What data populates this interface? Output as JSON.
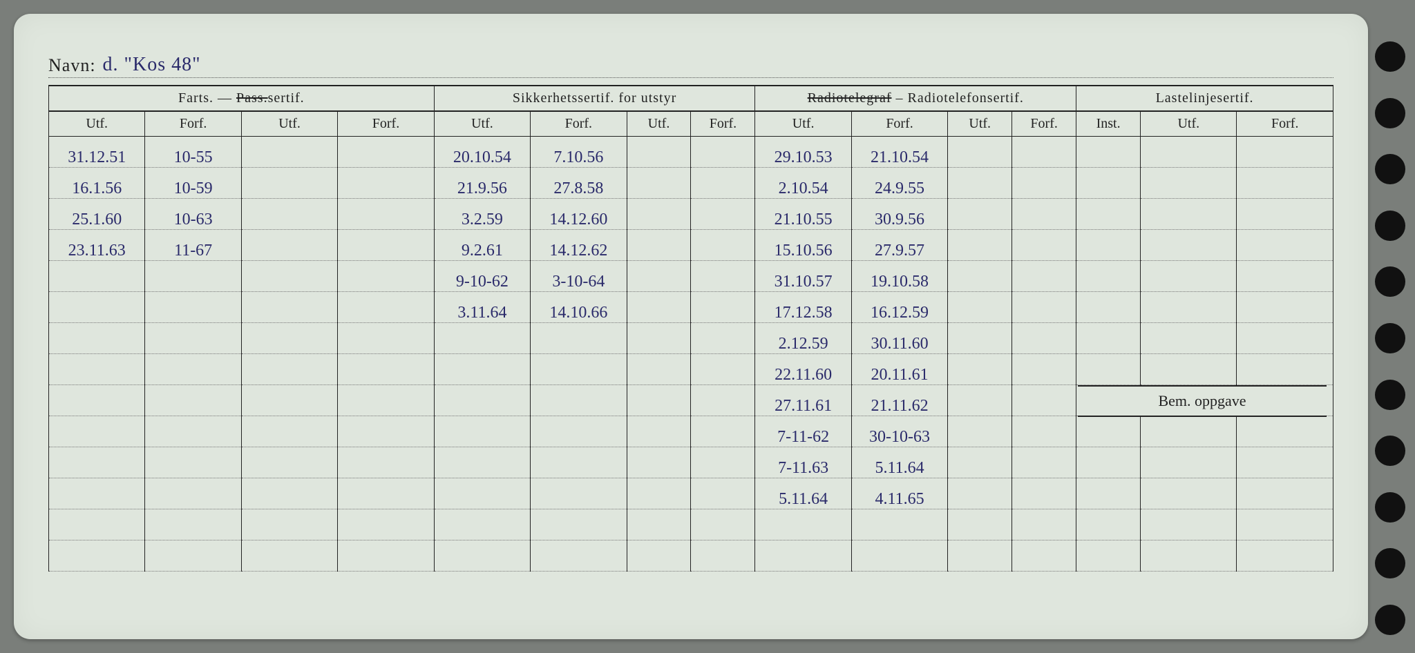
{
  "name_label": "Navn:",
  "name_value": "d.  \"Kos 48\"",
  "groups": {
    "g1": {
      "title": "Farts. — ",
      "strike": "Pass.",
      "suffix": "sertif."
    },
    "g2": {
      "title": "Sikkerhetssertif. for utstyr"
    },
    "g3": {
      "strike": "Radiotelegraf",
      "suffix": " – Radiotelefonsertif."
    },
    "g4": {
      "title": "Lastelinjesertif."
    }
  },
  "sub": {
    "utf": "Utf.",
    "forf": "Forf.",
    "inst": "Inst."
  },
  "bem": "Bem. oppgave",
  "rows": [
    {
      "a1": "31.12.51",
      "a2": "10-55",
      "b1": "20.10.54",
      "b2": "7.10.56",
      "c1": "29.10.53",
      "c2": "21.10.54"
    },
    {
      "a1": "16.1.56",
      "a2": "10-59",
      "b1": "21.9.56",
      "b2": "27.8.58",
      "c1": "2.10.54",
      "c2": "24.9.55"
    },
    {
      "a1": "25.1.60",
      "a2": "10-63",
      "b1": "3.2.59",
      "b2": "14.12.60",
      "c1": "21.10.55",
      "c2": "30.9.56"
    },
    {
      "a1": "23.11.63",
      "a2": "11-67",
      "b1": "9.2.61",
      "b2": "14.12.62",
      "c1": "15.10.56",
      "c2": "27.9.57"
    },
    {
      "a1": "",
      "a2": "",
      "b1": "9-10-62",
      "b2": "3-10-64",
      "c1": "31.10.57",
      "c2": "19.10.58"
    },
    {
      "a1": "",
      "a2": "",
      "b1": "3.11.64",
      "b2": "14.10.66",
      "c1": "17.12.58",
      "c2": "16.12.59"
    },
    {
      "a1": "",
      "a2": "",
      "b1": "",
      "b2": "",
      "c1": "2.12.59",
      "c2": "30.11.60"
    },
    {
      "a1": "",
      "a2": "",
      "b1": "",
      "b2": "",
      "c1": "22.11.60",
      "c2": "20.11.61"
    },
    {
      "a1": "",
      "a2": "",
      "b1": "",
      "b2": "",
      "c1": "27.11.61",
      "c2": "21.11.62"
    },
    {
      "a1": "",
      "a2": "",
      "b1": "",
      "b2": "",
      "c1": "7-11-62",
      "c2": "30-10-63"
    },
    {
      "a1": "",
      "a2": "",
      "b1": "",
      "b2": "",
      "c1": "7-11.63",
      "c2": "5.11.64"
    },
    {
      "a1": "",
      "a2": "",
      "b1": "",
      "b2": "",
      "c1": "5.11.64",
      "c2": "4.11.65"
    },
    {
      "a1": "",
      "a2": "",
      "b1": "",
      "b2": "",
      "c1": "",
      "c2": ""
    },
    {
      "a1": "",
      "a2": "",
      "b1": "",
      "b2": "",
      "c1": "",
      "c2": ""
    }
  ]
}
